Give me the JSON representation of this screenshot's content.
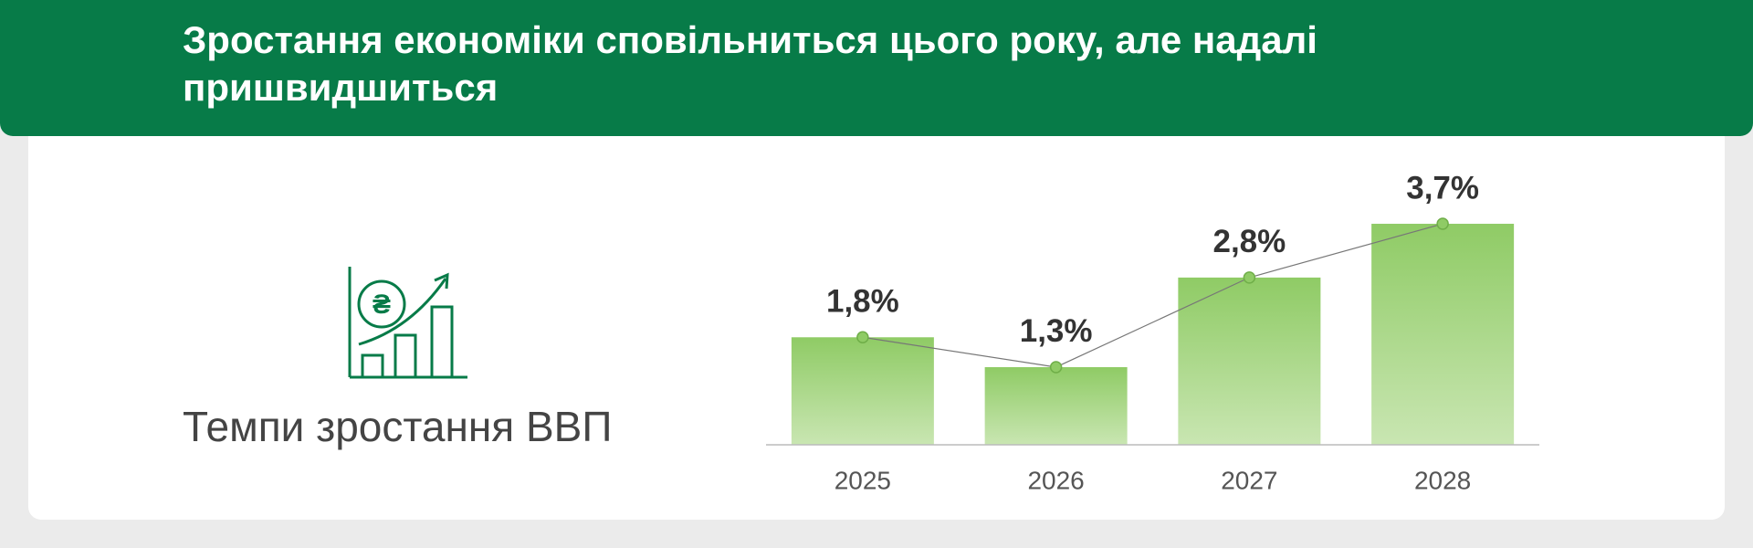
{
  "header": {
    "title": "Зростання економіки сповільниться цього року, але надалі пришвидшиться"
  },
  "chart_data": {
    "type": "bar",
    "caption": "Темпи зростання ВВП",
    "categories": [
      "2025",
      "2026",
      "2027",
      "2028"
    ],
    "values": [
      1.8,
      1.3,
      2.8,
      3.7
    ],
    "value_labels": [
      "1,8%",
      "1,3%",
      "2,8%",
      "3,7%"
    ],
    "color": "#8fcb65",
    "line_color": "#777777",
    "ylim": [
      0,
      5
    ]
  }
}
